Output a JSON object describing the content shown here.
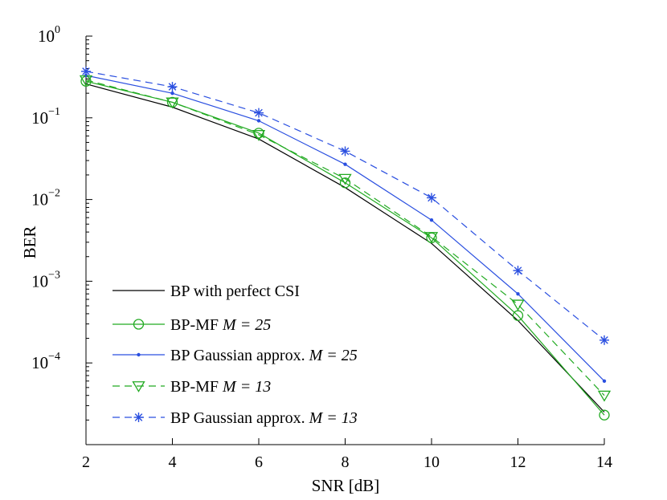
{
  "chart_data": {
    "type": "line",
    "title": "",
    "xlabel": "SNR [dB]",
    "ylabel": "BER",
    "x_scale": "linear",
    "y_scale": "log",
    "xlim": [
      2,
      14
    ],
    "ylim": [
      1e-05,
      1
    ],
    "x_ticks": [
      2,
      4,
      6,
      8,
      10,
      12,
      14
    ],
    "x_tick_labels": [
      "2",
      "4",
      "6",
      "8",
      "10",
      "12",
      "14"
    ],
    "y_ticks": [
      {
        "value": 1,
        "base": "10",
        "exp": "0"
      },
      {
        "value": 0.1,
        "base": "10",
        "exp": "−1"
      },
      {
        "value": 0.01,
        "base": "10",
        "exp": "−2"
      },
      {
        "value": 0.001,
        "base": "10",
        "exp": "−3"
      },
      {
        "value": 0.0001,
        "base": "10",
        "exp": "−4"
      }
    ],
    "grid": false,
    "legend_position": "bottom-left",
    "x": [
      2,
      4,
      6,
      8,
      10,
      12,
      14
    ],
    "series": [
      {
        "name": "BP with perfect CSI",
        "label_text": "BP with perfect CSI",
        "label_math": "",
        "color": "#000000",
        "dash": "solid",
        "marker": "none",
        "values": [
          0.26,
          0.135,
          0.055,
          0.014,
          0.0029,
          0.00033,
          2.5e-05
        ]
      },
      {
        "name": "BP-MF M = 25",
        "label_text": "BP-MF ",
        "label_math": "M = 25",
        "color": "#22aa22",
        "dash": "solid",
        "marker": "circle",
        "values": [
          0.28,
          0.155,
          0.065,
          0.016,
          0.0034,
          0.00038,
          2.3e-05
        ]
      },
      {
        "name": "BP Gaussian approx. M = 25",
        "label_text": "BP Gaussian approx. ",
        "label_math": "M = 25",
        "color": "#2a4fe0",
        "dash": "solid",
        "marker": "dot",
        "values": [
          0.33,
          0.2,
          0.092,
          0.027,
          0.0056,
          0.0007,
          6e-05
        ]
      },
      {
        "name": "BP-MF M = 13",
        "label_text": "BP-MF ",
        "label_math": "M = 13",
        "color": "#22aa22",
        "dash": "dashed",
        "marker": "triangle-down",
        "values": [
          0.29,
          0.155,
          0.062,
          0.018,
          0.0035,
          0.00052,
          4e-05
        ]
      },
      {
        "name": "BP Gaussian approx. M = 13",
        "label_text": "BP Gaussian approx. ",
        "label_math": "M = 13",
        "color": "#2a4fe0",
        "dash": "dashed",
        "marker": "asterisk",
        "values": [
          0.37,
          0.24,
          0.115,
          0.039,
          0.0105,
          0.00135,
          0.00019
        ]
      }
    ]
  }
}
